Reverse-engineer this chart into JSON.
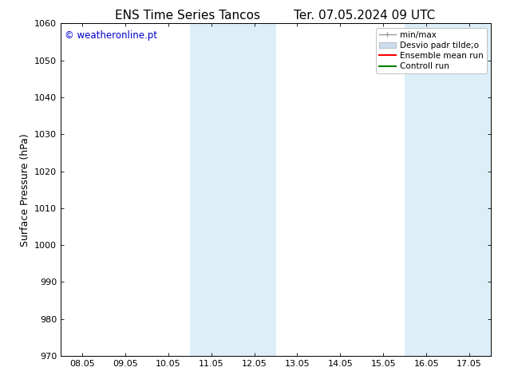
{
  "title_left": "ENS Time Series Tancos",
  "title_right": "Ter. 07.05.2024 09 UTC",
  "ylabel": "Surface Pressure (hPa)",
  "ylim": [
    970,
    1060
  ],
  "yticks": [
    970,
    980,
    990,
    1000,
    1010,
    1020,
    1030,
    1040,
    1050,
    1060
  ],
  "x_labels": [
    "08.05",
    "09.05",
    "10.05",
    "11.05",
    "12.05",
    "13.05",
    "14.05",
    "15.05",
    "16.05",
    "17.05"
  ],
  "x_values": [
    0,
    1,
    2,
    3,
    4,
    5,
    6,
    7,
    8,
    9
  ],
  "xlim": [
    -0.5,
    9.5
  ],
  "shaded_regions": [
    {
      "x_start": 2.5,
      "x_end": 4.5
    },
    {
      "x_start": 7.5,
      "x_end": 9.5
    }
  ],
  "shaded_color": "#ddeef8",
  "watermark": "© weatheronline.pt",
  "watermark_color": "#0000cc",
  "legend_entries": [
    {
      "label": "min/max",
      "color": "#999999",
      "style": "minmax"
    },
    {
      "label": "Desvio padr tilde;o",
      "color": "#ccddee",
      "style": "filled"
    },
    {
      "label": "Ensemble mean run",
      "color": "red",
      "style": "line"
    },
    {
      "label": "Controll run",
      "color": "green",
      "style": "line"
    }
  ],
  "bg_color": "#ffffff",
  "title_fontsize": 11,
  "label_fontsize": 9,
  "tick_fontsize": 8,
  "legend_fontsize": 7.5
}
